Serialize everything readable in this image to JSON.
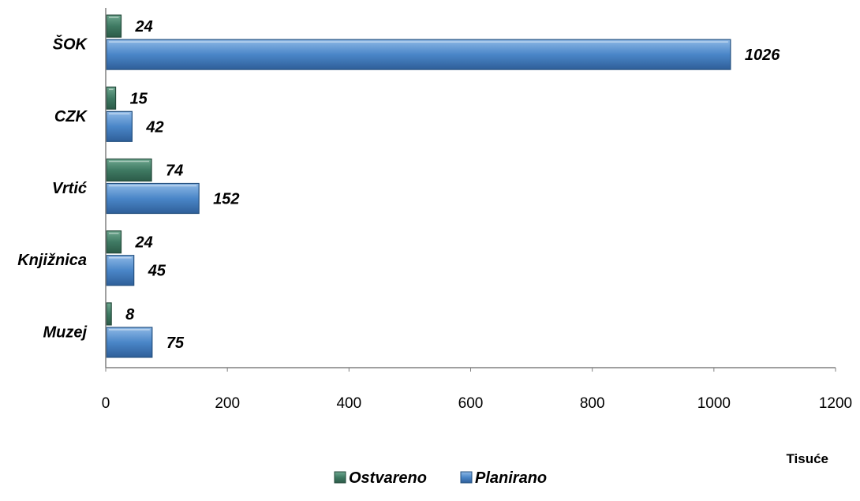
{
  "chart_data": {
    "type": "bar",
    "orientation": "horizontal",
    "categories": [
      "ŠOK",
      "CZK",
      "Vrtić",
      "Knjižnica",
      "Muzej"
    ],
    "series": [
      {
        "name": "Ostvareno",
        "values": [
          24,
          15,
          74,
          24,
          8
        ],
        "color": "#3f7a63"
      },
      {
        "name": "Planirano",
        "values": [
          1026,
          42,
          152,
          45,
          75
        ],
        "color": "#4a86c8"
      }
    ],
    "xlim": [
      0,
      1200
    ],
    "xticks": [
      0,
      200,
      400,
      600,
      800,
      1000,
      1200
    ],
    "unit_label": "Tisuće",
    "data_labels": true,
    "grid": false,
    "legend_position": "bottom"
  }
}
